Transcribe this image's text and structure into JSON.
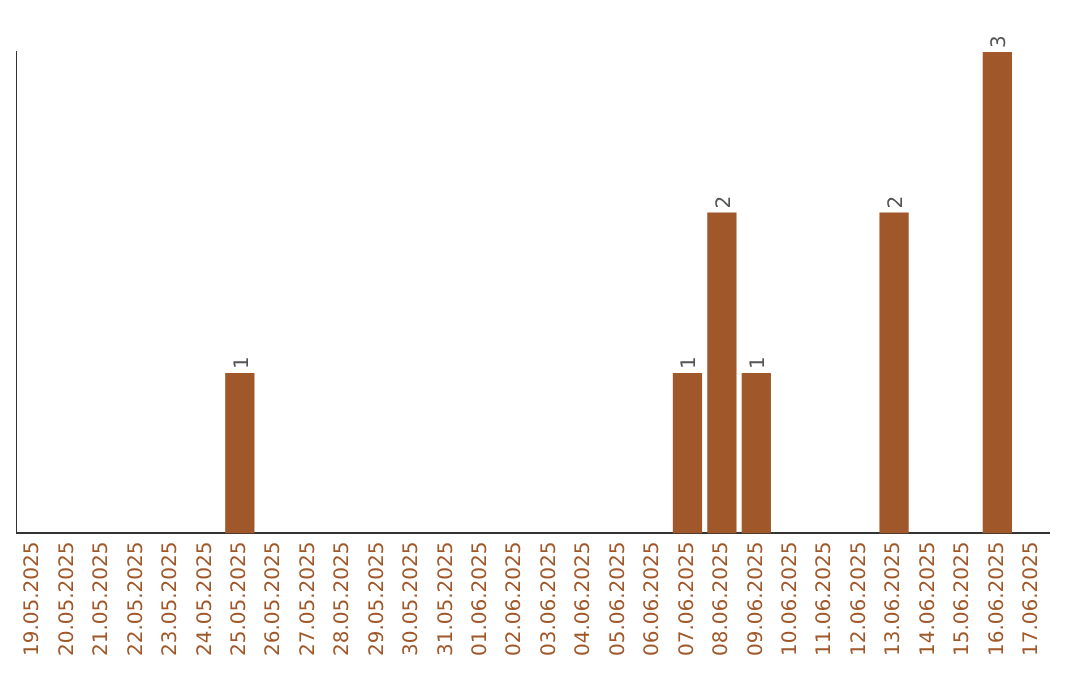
{
  "chart_data": {
    "type": "bar",
    "categories": [
      "19.05.2025",
      "20.05.2025",
      "21.05.2025",
      "22.05.2025",
      "23.05.2025",
      "24.05.2025",
      "25.05.2025",
      "26.05.2025",
      "27.05.2025",
      "28.05.2025",
      "29.05.2025",
      "30.05.2025",
      "31.05.2025",
      "01.06.2025",
      "02.06.2025",
      "03.06.2025",
      "04.06.2025",
      "05.06.2025",
      "06.06.2025",
      "07.06.2025",
      "08.06.2025",
      "09.06.2025",
      "10.06.2025",
      "11.06.2025",
      "12.06.2025",
      "13.06.2025",
      "14.06.2025",
      "15.06.2025",
      "16.06.2025",
      "17.06.2025"
    ],
    "values": [
      0,
      0,
      0,
      0,
      0,
      0,
      1,
      0,
      0,
      0,
      0,
      0,
      0,
      0,
      0,
      0,
      0,
      0,
      0,
      1,
      2,
      1,
      0,
      0,
      0,
      2,
      0,
      0,
      3,
      0
    ],
    "value_labels": [
      null,
      null,
      null,
      null,
      null,
      null,
      "1",
      null,
      null,
      null,
      null,
      null,
      null,
      null,
      null,
      null,
      null,
      null,
      null,
      "1",
      "2",
      "1",
      null,
      null,
      null,
      "2",
      null,
      null,
      "3",
      null
    ],
    "color": "#a0582a",
    "relative": false,
    "grid": false,
    "legend": false,
    "tick_labels": "x"
  }
}
